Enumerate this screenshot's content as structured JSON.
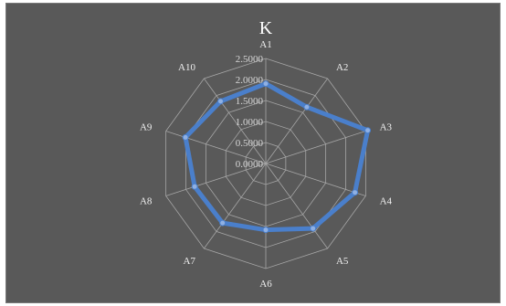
{
  "chart_data": {
    "type": "radar",
    "title": "K",
    "categories": [
      "A1",
      "A2",
      "A3",
      "A4",
      "A5",
      "A6",
      "A7",
      "A8",
      "A9",
      "A10"
    ],
    "series": [
      {
        "values": [
          1.9,
          1.66,
          2.55,
          2.23,
          1.91,
          1.58,
          1.75,
          1.78,
          2.01,
          1.83
        ],
        "color": "#4a7fcb"
      }
    ],
    "rlim": [
      0,
      2.5
    ],
    "ticks": [
      "0.0000",
      "0.5000",
      "1.0000",
      "1.5000",
      "2.0000",
      "2.5000"
    ],
    "grid": true,
    "grid_shape": "polygon",
    "legend": "none",
    "background_color": "#595959",
    "grid_color": "#a6a6a6",
    "text_color": "#ffffff"
  }
}
